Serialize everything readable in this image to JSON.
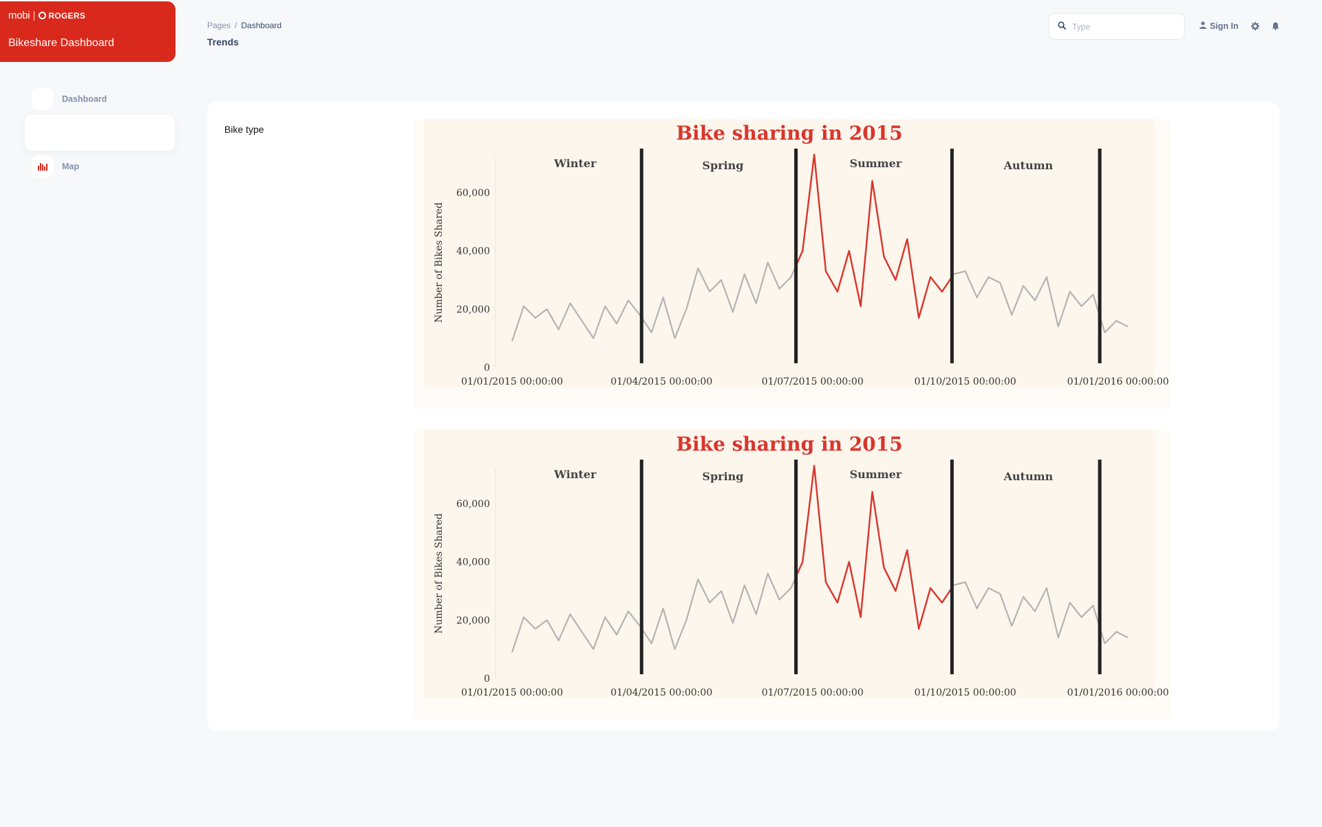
{
  "brand": {
    "logo_primary": "mobi",
    "logo_secondary": "ROGERS",
    "title": "Bikeshare Dashboard",
    "color": "#d9291c"
  },
  "sidebar": {
    "items": [
      {
        "label": "Dashboard",
        "icon": "dashboard-icon"
      },
      {
        "label": "Map",
        "icon": "bar-chart-icon"
      }
    ]
  },
  "header": {
    "breadcrumb": {
      "parent": "Pages",
      "separator": "/",
      "current": "Dashboard"
    },
    "title": "Trends"
  },
  "topbar": {
    "search_placeholder": "Type",
    "signin_label": "Sign In",
    "icons": [
      "search-icon",
      "user-icon",
      "gear-icon",
      "bell-icon"
    ]
  },
  "card": {
    "label": "Bike type"
  },
  "chart_data": [
    {
      "type": "line",
      "title": "Bike sharing in 2015",
      "ylabel": "Number of Bikes Shared",
      "xlabel": "",
      "ylim": [
        0,
        72000
      ],
      "xlim": [
        "2014-12-22",
        "2016-01-19"
      ],
      "yticks": [
        0,
        20000,
        40000,
        60000
      ],
      "ytick_labels": [
        "0",
        "20,000",
        "40,000",
        "60,000"
      ],
      "xticks": [
        "2015-01-01",
        "2015-04-01",
        "2015-07-01",
        "2015-10-01",
        "2016-01-01"
      ],
      "xtick_labels": [
        "01/01/2015 00:00:00",
        "01/04/2015 00:00:00",
        "01/07/2015 00:00:00",
        "01/10/2015 00:00:00",
        "01/01/2016 00:00:00"
      ],
      "grid": false,
      "season_dividers": [
        "2015-03-20",
        "2015-06-21",
        "2015-09-23",
        "2015-12-21"
      ],
      "season_labels": [
        {
          "label": "Winter",
          "x": "2015-02-08"
        },
        {
          "label": "Spring",
          "x": "2015-05-08"
        },
        {
          "label": "Summer",
          "x": "2015-08-08"
        },
        {
          "label": "Autumn",
          "x": "2015-11-08"
        }
      ],
      "highlight": {
        "from": "2015-06-21",
        "to": "2015-09-23"
      },
      "colors": {
        "line": "#b3b3b3",
        "highlight": "#d9362c",
        "divider": "#222222",
        "title": "#d9362c",
        "background": "#fdf6ed"
      },
      "series": [
        {
          "x": [
            "2015-01-01",
            "2015-01-08",
            "2015-01-15",
            "2015-01-22",
            "2015-01-29",
            "2015-02-05",
            "2015-02-12",
            "2015-02-19",
            "2015-02-26",
            "2015-03-05",
            "2015-03-12",
            "2015-03-19",
            "2015-03-26",
            "2015-04-02",
            "2015-04-09",
            "2015-04-16",
            "2015-04-23",
            "2015-04-30",
            "2015-05-07",
            "2015-05-14",
            "2015-05-21",
            "2015-05-28",
            "2015-06-04",
            "2015-06-11",
            "2015-06-18",
            "2015-06-25",
            "2015-07-02",
            "2015-07-09",
            "2015-07-16",
            "2015-07-23",
            "2015-07-30",
            "2015-08-06",
            "2015-08-13",
            "2015-08-20",
            "2015-08-27",
            "2015-09-03",
            "2015-09-10",
            "2015-09-17",
            "2015-09-24",
            "2015-10-01",
            "2015-10-08",
            "2015-10-15",
            "2015-10-22",
            "2015-10-29",
            "2015-11-05",
            "2015-11-12",
            "2015-11-19",
            "2015-11-26",
            "2015-12-03",
            "2015-12-10",
            "2015-12-17",
            "2015-12-24",
            "2015-12-31",
            "2016-01-07"
          ],
          "values": [
            9000,
            21000,
            17000,
            20000,
            13000,
            22000,
            16000,
            10000,
            21000,
            15000,
            23000,
            18000,
            12000,
            24000,
            10000,
            20000,
            34000,
            26000,
            30000,
            19000,
            32000,
            22000,
            36000,
            27000,
            31000,
            40000,
            73000,
            33000,
            26000,
            40000,
            21000,
            64000,
            38000,
            30000,
            44000,
            17000,
            31000,
            26000,
            32000,
            33000,
            24000,
            31000,
            29000,
            18000,
            28000,
            23000,
            31000,
            14000,
            26000,
            21000,
            25000,
            12000,
            16000,
            14000
          ]
        }
      ]
    },
    {
      "type": "line",
      "title": "Bike sharing in 2015",
      "ylabel": "Number of Bikes Shared",
      "xlabel": "",
      "ylim": [
        0,
        72000
      ],
      "xlim": [
        "2014-12-22",
        "2016-01-19"
      ],
      "yticks": [
        0,
        20000,
        40000,
        60000
      ],
      "ytick_labels": [
        "0",
        "20,000",
        "40,000",
        "60,000"
      ],
      "xticks": [
        "2015-01-01",
        "2015-04-01",
        "2015-07-01",
        "2015-10-01",
        "2016-01-01"
      ],
      "xtick_labels": [
        "01/01/2015 00:00:00",
        "01/04/2015 00:00:00",
        "01/07/2015 00:00:00",
        "01/10/2015 00:00:00",
        "01/01/2016 00:00:00"
      ],
      "grid": false,
      "season_dividers": [
        "2015-03-20",
        "2015-06-21",
        "2015-09-23",
        "2015-12-21"
      ],
      "season_labels": [
        {
          "label": "Winter",
          "x": "2015-02-08"
        },
        {
          "label": "Spring",
          "x": "2015-05-08"
        },
        {
          "label": "Summer",
          "x": "2015-08-08"
        },
        {
          "label": "Autumn",
          "x": "2015-11-08"
        }
      ],
      "highlight": {
        "from": "2015-06-21",
        "to": "2015-09-23"
      },
      "colors": {
        "line": "#b3b3b3",
        "highlight": "#d9362c",
        "divider": "#222222",
        "title": "#d9362c",
        "background": "#fdf6ed"
      },
      "series": [
        {
          "x": [
            "2015-01-01",
            "2015-01-08",
            "2015-01-15",
            "2015-01-22",
            "2015-01-29",
            "2015-02-05",
            "2015-02-12",
            "2015-02-19",
            "2015-02-26",
            "2015-03-05",
            "2015-03-12",
            "2015-03-19",
            "2015-03-26",
            "2015-04-02",
            "2015-04-09",
            "2015-04-16",
            "2015-04-23",
            "2015-04-30",
            "2015-05-07",
            "2015-05-14",
            "2015-05-21",
            "2015-05-28",
            "2015-06-04",
            "2015-06-11",
            "2015-06-18",
            "2015-06-25",
            "2015-07-02",
            "2015-07-09",
            "2015-07-16",
            "2015-07-23",
            "2015-07-30",
            "2015-08-06",
            "2015-08-13",
            "2015-08-20",
            "2015-08-27",
            "2015-09-03",
            "2015-09-10",
            "2015-09-17",
            "2015-09-24",
            "2015-10-01",
            "2015-10-08",
            "2015-10-15",
            "2015-10-22",
            "2015-10-29",
            "2015-11-05",
            "2015-11-12",
            "2015-11-19",
            "2015-11-26",
            "2015-12-03",
            "2015-12-10",
            "2015-12-17",
            "2015-12-24",
            "2015-12-31",
            "2016-01-07"
          ],
          "values": [
            9000,
            21000,
            17000,
            20000,
            13000,
            22000,
            16000,
            10000,
            21000,
            15000,
            23000,
            18000,
            12000,
            24000,
            10000,
            20000,
            34000,
            26000,
            30000,
            19000,
            32000,
            22000,
            36000,
            27000,
            31000,
            40000,
            73000,
            33000,
            26000,
            40000,
            21000,
            64000,
            38000,
            30000,
            44000,
            17000,
            31000,
            26000,
            32000,
            33000,
            24000,
            31000,
            29000,
            18000,
            28000,
            23000,
            31000,
            14000,
            26000,
            21000,
            25000,
            12000,
            16000,
            14000
          ]
        }
      ]
    }
  ]
}
